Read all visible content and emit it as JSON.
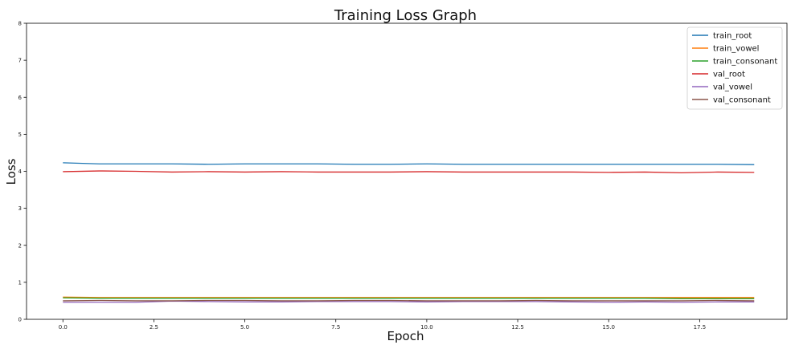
{
  "chart_data": {
    "type": "line",
    "title": "Training Loss Graph",
    "xlabel": "Epoch",
    "ylabel": "Loss",
    "xlim": [
      -1,
      19.9
    ],
    "ylim": [
      0,
      8
    ],
    "xticks": [
      0.0,
      2.5,
      5.0,
      7.5,
      10.0,
      12.5,
      15.0,
      17.5
    ],
    "xtick_labels": [
      "0.0",
      "2.5",
      "5.0",
      "7.5",
      "10.0",
      "12.5",
      "15.0",
      "17.5"
    ],
    "yticks": [
      0,
      1,
      2,
      3,
      4,
      5,
      6,
      7,
      8
    ],
    "ytick_labels": [
      "0",
      "1",
      "2",
      "3",
      "4",
      "5",
      "6",
      "7",
      "8"
    ],
    "grid": false,
    "legend_position": "top-right",
    "x": [
      0,
      1,
      2,
      3,
      4,
      5,
      6,
      7,
      8,
      9,
      10,
      11,
      12,
      13,
      14,
      15,
      16,
      17,
      18,
      19
    ],
    "series": [
      {
        "name": "train_root",
        "color": "#1f77b4",
        "values": [
          4.23,
          4.2,
          4.2,
          4.2,
          4.19,
          4.2,
          4.2,
          4.2,
          4.19,
          4.19,
          4.2,
          4.19,
          4.19,
          4.19,
          4.19,
          4.19,
          4.19,
          4.19,
          4.19,
          4.18
        ]
      },
      {
        "name": "train_vowel",
        "color": "#ff7f0e",
        "values": [
          0.6,
          0.59,
          0.59,
          0.59,
          0.59,
          0.59,
          0.59,
          0.59,
          0.59,
          0.59,
          0.59,
          0.59,
          0.59,
          0.59,
          0.59,
          0.59,
          0.59,
          0.59,
          0.59,
          0.59
        ]
      },
      {
        "name": "train_consonant",
        "color": "#2ca02c",
        "values": [
          0.58,
          0.57,
          0.57,
          0.57,
          0.57,
          0.57,
          0.57,
          0.57,
          0.57,
          0.57,
          0.57,
          0.57,
          0.57,
          0.57,
          0.57,
          0.57,
          0.57,
          0.56,
          0.56,
          0.56
        ]
      },
      {
        "name": "val_root",
        "color": "#d62728",
        "values": [
          3.99,
          4.01,
          4.0,
          3.98,
          3.99,
          3.98,
          3.99,
          3.98,
          3.98,
          3.98,
          3.99,
          3.98,
          3.98,
          3.98,
          3.98,
          3.97,
          3.98,
          3.96,
          3.98,
          3.97
        ]
      },
      {
        "name": "val_vowel",
        "color": "#9467bd",
        "values": [
          0.46,
          0.46,
          0.46,
          0.49,
          0.48,
          0.47,
          0.47,
          0.48,
          0.48,
          0.48,
          0.47,
          0.48,
          0.48,
          0.48,
          0.47,
          0.46,
          0.47,
          0.46,
          0.47,
          0.47
        ]
      },
      {
        "name": "val_consonant",
        "color": "#8c564b",
        "values": [
          0.5,
          0.51,
          0.5,
          0.5,
          0.51,
          0.51,
          0.5,
          0.5,
          0.51,
          0.51,
          0.5,
          0.5,
          0.5,
          0.51,
          0.5,
          0.5,
          0.5,
          0.5,
          0.51,
          0.5
        ]
      }
    ]
  }
}
